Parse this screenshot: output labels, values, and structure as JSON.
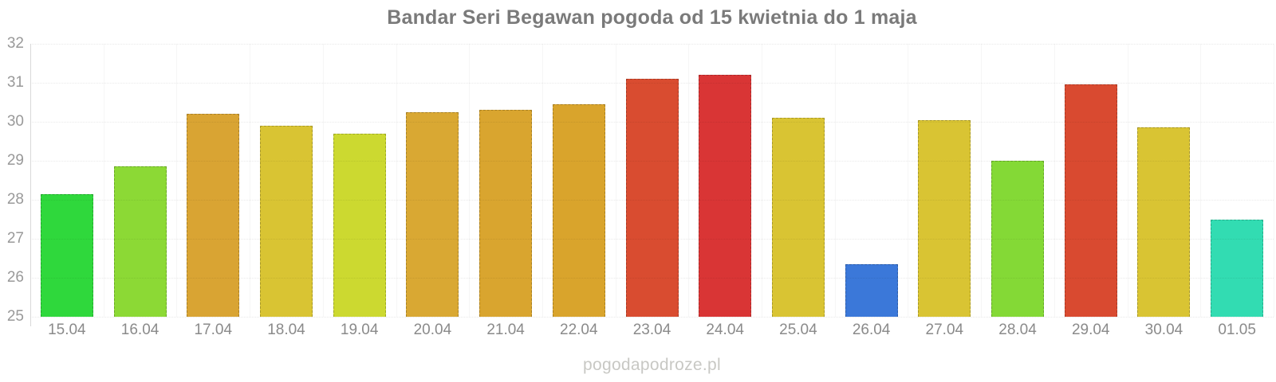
{
  "chart_data": {
    "type": "bar",
    "title": "Bandar Seri Begawan pogoda od 15 kwietnia do 1 maja",
    "xlabel": "",
    "ylabel": "",
    "ylim": [
      25,
      32
    ],
    "yticks": [
      25,
      26,
      27,
      28,
      29,
      30,
      31,
      32
    ],
    "grid": true,
    "legend_position": "none",
    "categories": [
      "15.04",
      "16.04",
      "17.04",
      "18.04",
      "19.04",
      "20.04",
      "21.04",
      "22.04",
      "23.04",
      "24.04",
      "25.04",
      "26.04",
      "27.04",
      "28.04",
      "29.04",
      "30.04",
      "01.05"
    ],
    "values": [
      28.15,
      28.85,
      30.2,
      29.9,
      29.7,
      30.25,
      30.3,
      30.45,
      31.1,
      31.2,
      30.1,
      26.35,
      30.05,
      29.0,
      30.95,
      29.85,
      27.5
    ],
    "colors": [
      "#2fd83c",
      "#8cd935",
      "#d9a433",
      "#d9c433",
      "#ccd930",
      "#d9a833",
      "#d9a52f",
      "#d9a42c",
      "#d94c30",
      "#d93535",
      "#d9c433",
      "#3b78d9",
      "#d9c433",
      "#84d936",
      "#d94a30",
      "#d9c433",
      "#32dcb2"
    ]
  },
  "footer": {
    "text": "pogodapodroze.pl"
  },
  "theme": {
    "background": "#ffffff",
    "title_color": "#7a7a7a",
    "y_tick_color": "#999999",
    "x_tick_color": "#8a8a8a",
    "axis_line_color": "#d8d8d8",
    "watermark_color": "#c8c8c4"
  }
}
